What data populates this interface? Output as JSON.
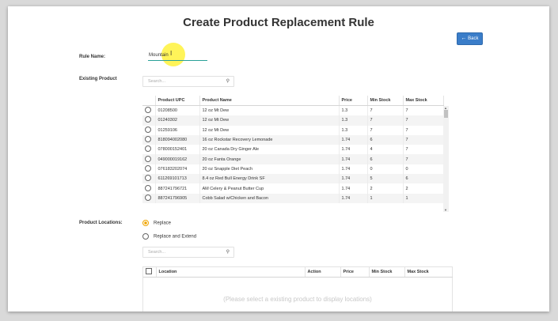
{
  "page": {
    "title": "Create Product Replacement Rule",
    "back_label": "Back"
  },
  "rule_name": {
    "label": "Rule Name:",
    "value": "Mountain"
  },
  "existing_product": {
    "label": "Existing Product",
    "search_placeholder": "Search...",
    "columns": [
      "Product UPC",
      "Product Name",
      "Price",
      "Min Stock",
      "Max Stock"
    ],
    "rows": [
      {
        "upc": "01208500",
        "name": "12 oz Mt Dew",
        "price": "1.3",
        "min": "7",
        "max": "7"
      },
      {
        "upc": "01240302",
        "name": "12 oz Mt Dew",
        "price": "1.3",
        "min": "7",
        "max": "7"
      },
      {
        "upc": "01259106",
        "name": "12 oz Mt Dew",
        "price": "1.3",
        "min": "7",
        "max": "7"
      },
      {
        "upc": "818094002080",
        "name": "16 oz Rockstar Recovery Lemonade",
        "price": "1.74",
        "min": "6",
        "max": "7"
      },
      {
        "upc": "078000152401",
        "name": "20 oz Canada Dry Ginger Ale",
        "price": "1.74",
        "min": "4",
        "max": "7"
      },
      {
        "upc": "049000019162",
        "name": "20 oz Fanta Orange",
        "price": "1.74",
        "min": "6",
        "max": "7"
      },
      {
        "upc": "076183202074",
        "name": "20 oz Snapple Diet Peach",
        "price": "1.74",
        "min": "0",
        "max": "0"
      },
      {
        "upc": "611269101713",
        "name": "8.4 oz Red Bull Energy Drink SF",
        "price": "1.74",
        "min": "5",
        "max": "6"
      },
      {
        "upc": "887241796721",
        "name": "AM Celery & Peanut Butter Cup",
        "price": "1.74",
        "min": "2",
        "max": "2"
      },
      {
        "upc": "887241796905",
        "name": "Cobb Salad w/Chicken and Bacon",
        "price": "1.74",
        "min": "1",
        "max": "1"
      }
    ]
  },
  "product_locations": {
    "label": "Product Locations:",
    "options": [
      "Replace",
      "Replace and Extend"
    ],
    "selected": "Replace",
    "search_placeholder": "Search...",
    "columns": [
      "Location",
      "Action",
      "Price",
      "Min Stock",
      "Max Stock"
    ],
    "empty_message": "(Please select a existing product to display locations)"
  },
  "colors": {
    "accent_button": "#3a7dc9",
    "input_underline": "#2aa198",
    "radio_selected": "#f0a500",
    "cursor_highlight": "#ffee00"
  },
  "icons": {
    "back": "arrow-left-icon",
    "search": "magnifier-icon",
    "cursor": "text-cursor-icon"
  }
}
